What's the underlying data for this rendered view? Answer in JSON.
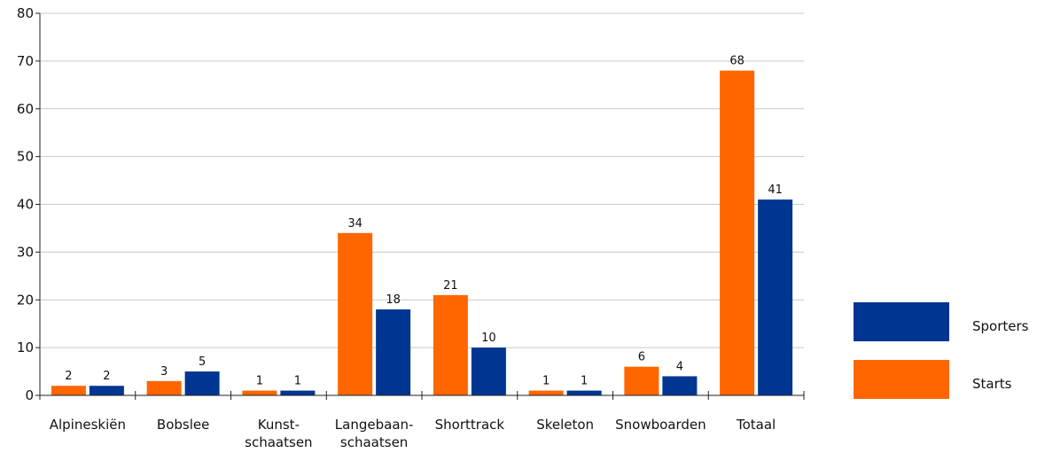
{
  "chart_data": {
    "type": "bar",
    "categories": [
      [
        "Alpineskiën"
      ],
      [
        "Bobslee"
      ],
      [
        "Kunst-",
        "schaatsen"
      ],
      [
        "Langebaan-",
        "schaatsen"
      ],
      [
        "Shorttrack"
      ],
      [
        "Skeleton"
      ],
      [
        "Snowboarden"
      ],
      [
        "Totaal"
      ]
    ],
    "series": [
      {
        "name": "Starts",
        "color": "#ff6600",
        "values": [
          2,
          3,
          1,
          34,
          21,
          1,
          6,
          68
        ]
      },
      {
        "name": "Sporters",
        "color": "#003591",
        "values": [
          2,
          5,
          1,
          18,
          10,
          1,
          4,
          41
        ]
      }
    ],
    "ylim": [
      0,
      80
    ],
    "yticks": [
      0,
      10,
      20,
      30,
      40,
      50,
      60,
      70,
      80
    ],
    "grid": true,
    "legend_position": "right",
    "legend_order": [
      "Sporters",
      "Starts"
    ],
    "title": "",
    "xlabel": "",
    "ylabel": ""
  }
}
